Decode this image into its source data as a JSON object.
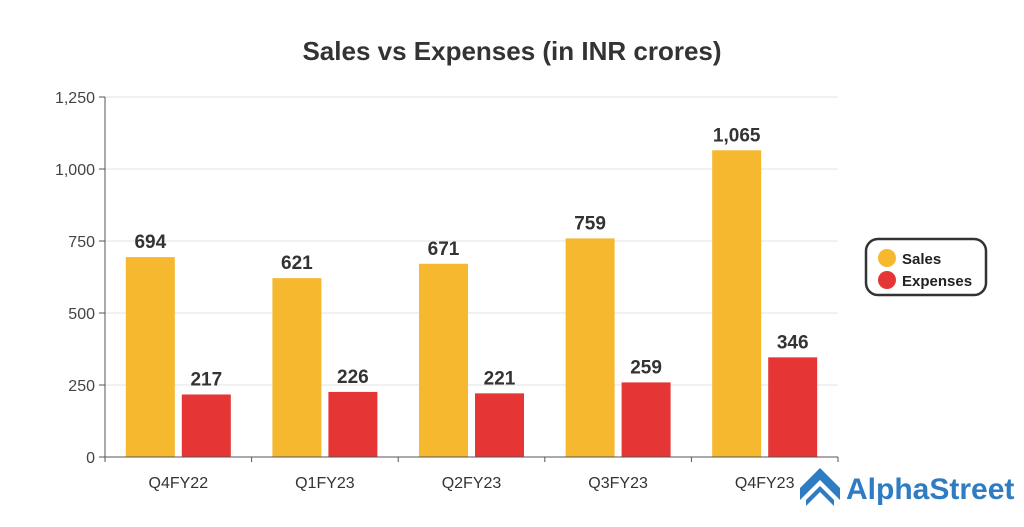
{
  "chart_data": {
    "type": "bar",
    "title": "Sales vs Expenses (in INR crores)",
    "categories": [
      "Q4FY22",
      "Q1FY23",
      "Q2FY23",
      "Q3FY23",
      "Q4FY23"
    ],
    "series": [
      {
        "name": "Sales",
        "color": "#f5b82e",
        "values": [
          694,
          621,
          671,
          759,
          1065
        ],
        "labels": [
          "694",
          "621",
          "671",
          "759",
          "1,065"
        ]
      },
      {
        "name": "Expenses",
        "color": "#e53535",
        "values": [
          217,
          226,
          221,
          259,
          346
        ],
        "labels": [
          "217",
          "226",
          "221",
          "259",
          "346"
        ]
      }
    ],
    "ylim": [
      0,
      1250
    ],
    "yticks": [
      {
        "value": 0,
        "label": "0"
      },
      {
        "value": 250,
        "label": "250"
      },
      {
        "value": 500,
        "label": "500"
      },
      {
        "value": 750,
        "label": "750"
      },
      {
        "value": 1000,
        "label": "1,000"
      },
      {
        "value": 1250,
        "label": "1,250"
      }
    ],
    "xlabel": "",
    "ylabel": "",
    "grid": true,
    "legend_position": "right"
  },
  "brand": {
    "name": "AlphaStreet",
    "icon": "alphastreet-logo-icon",
    "color": "#2e7cc2"
  }
}
